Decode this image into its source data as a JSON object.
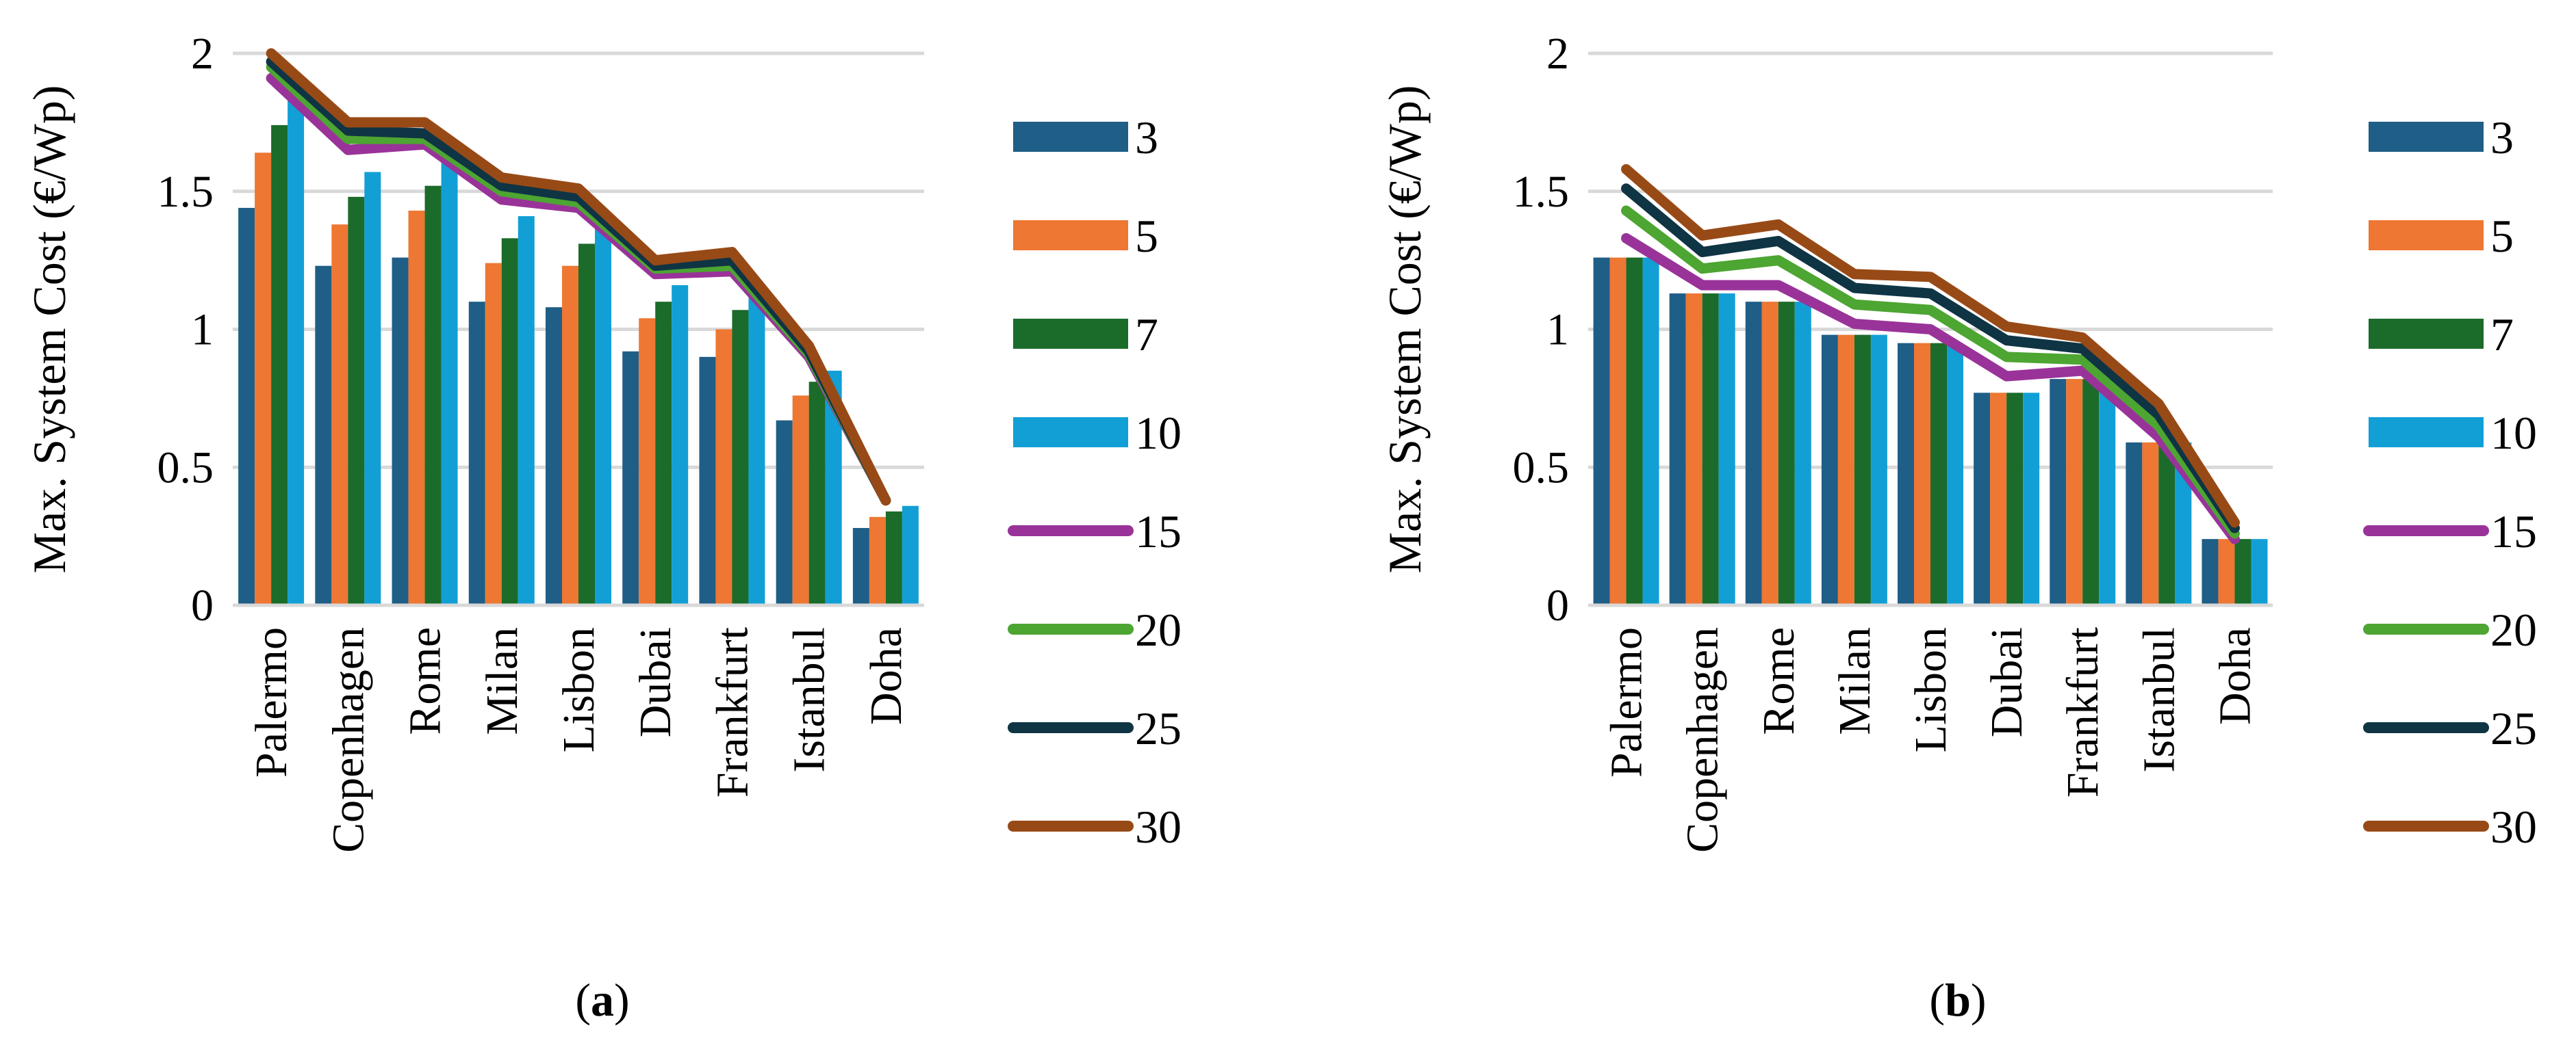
{
  "chart_data": [
    {
      "panel_label": "a",
      "type": "bar",
      "ylabel": "Max. System Cost (€/Wp)",
      "ylim": [
        0,
        2
      ],
      "yticks": [
        "0",
        "0.5",
        "1",
        "1.5",
        "2"
      ],
      "grid": true,
      "legend_position": "right",
      "categories": [
        "Palermo",
        "Copenhagen",
        "Rome",
        "Milan",
        "Lisbon",
        "Dubai",
        "Frankfurt",
        "Istanbul",
        "Doha"
      ],
      "bar_series": [
        {
          "name": "3",
          "color": "#1F5E86",
          "values": [
            1.44,
            1.23,
            1.26,
            1.1,
            1.08,
            0.92,
            0.9,
            0.67,
            0.28
          ]
        },
        {
          "name": "5",
          "color": "#EE7733",
          "values": [
            1.64,
            1.38,
            1.43,
            1.24,
            1.23,
            1.04,
            1.0,
            0.76,
            0.32
          ]
        },
        {
          "name": "7",
          "color": "#1B6B2A",
          "values": [
            1.74,
            1.48,
            1.52,
            1.33,
            1.31,
            1.1,
            1.07,
            0.81,
            0.34
          ]
        },
        {
          "name": "10",
          "color": "#129FD6",
          "values": [
            1.84,
            1.57,
            1.61,
            1.41,
            1.37,
            1.16,
            1.12,
            0.85,
            0.36
          ]
        }
      ],
      "line_series": [
        {
          "name": "15",
          "color": "#993399",
          "values": [
            1.91,
            1.65,
            1.67,
            1.47,
            1.44,
            1.2,
            1.21,
            0.9,
            0.38
          ]
        },
        {
          "name": "20",
          "color": "#4DA532",
          "values": [
            1.95,
            1.69,
            1.69,
            1.5,
            1.46,
            1.22,
            1.23,
            0.91,
            0.38
          ]
        },
        {
          "name": "25",
          "color": "#0F3444",
          "values": [
            1.97,
            1.72,
            1.71,
            1.52,
            1.48,
            1.23,
            1.25,
            0.92,
            0.38
          ]
        },
        {
          "name": "30",
          "color": "#984A16",
          "values": [
            2.0,
            1.75,
            1.75,
            1.55,
            1.51,
            1.25,
            1.28,
            0.94,
            0.38
          ]
        }
      ],
      "caption": "(a)"
    },
    {
      "panel_label": "b",
      "type": "bar",
      "ylabel": "Max. System Cost (€/Wp)",
      "ylim": [
        0,
        2
      ],
      "yticks": [
        "0",
        "0.5",
        "1",
        "1.5",
        "2"
      ],
      "grid": true,
      "legend_position": "right",
      "categories": [
        "Palermo",
        "Copenhagen",
        "Rome",
        "Milan",
        "Lisbon",
        "Dubai",
        "Frankfurt",
        "Istanbul",
        "Doha"
      ],
      "bar_series": [
        {
          "name": "3",
          "color": "#1F5E86",
          "values": [
            1.26,
            1.13,
            1.1,
            0.98,
            0.95,
            0.77,
            0.82,
            0.59,
            0.24
          ]
        },
        {
          "name": "5",
          "color": "#EE7733",
          "values": [
            1.26,
            1.13,
            1.1,
            0.98,
            0.95,
            0.77,
            0.82,
            0.59,
            0.24
          ]
        },
        {
          "name": "7",
          "color": "#1B6B2A",
          "values": [
            1.26,
            1.13,
            1.1,
            0.98,
            0.95,
            0.77,
            0.82,
            0.59,
            0.24
          ]
        },
        {
          "name": "10",
          "color": "#129FD6",
          "values": [
            1.26,
            1.13,
            1.1,
            0.98,
            0.95,
            0.77,
            0.82,
            0.59,
            0.24
          ]
        }
      ],
      "line_series": [
        {
          "name": "15",
          "color": "#993399",
          "values": [
            1.33,
            1.16,
            1.16,
            1.02,
            1.0,
            0.83,
            0.85,
            0.61,
            0.24
          ]
        },
        {
          "name": "20",
          "color": "#4DA532",
          "values": [
            1.43,
            1.22,
            1.25,
            1.09,
            1.07,
            0.9,
            0.89,
            0.65,
            0.26
          ]
        },
        {
          "name": "25",
          "color": "#0F3444",
          "values": [
            1.51,
            1.28,
            1.32,
            1.15,
            1.13,
            0.96,
            0.93,
            0.69,
            0.28
          ]
        },
        {
          "name": "30",
          "color": "#984A16",
          "values": [
            1.58,
            1.34,
            1.38,
            1.2,
            1.19,
            1.01,
            0.97,
            0.73,
            0.3
          ]
        }
      ],
      "caption": "(b)"
    }
  ]
}
